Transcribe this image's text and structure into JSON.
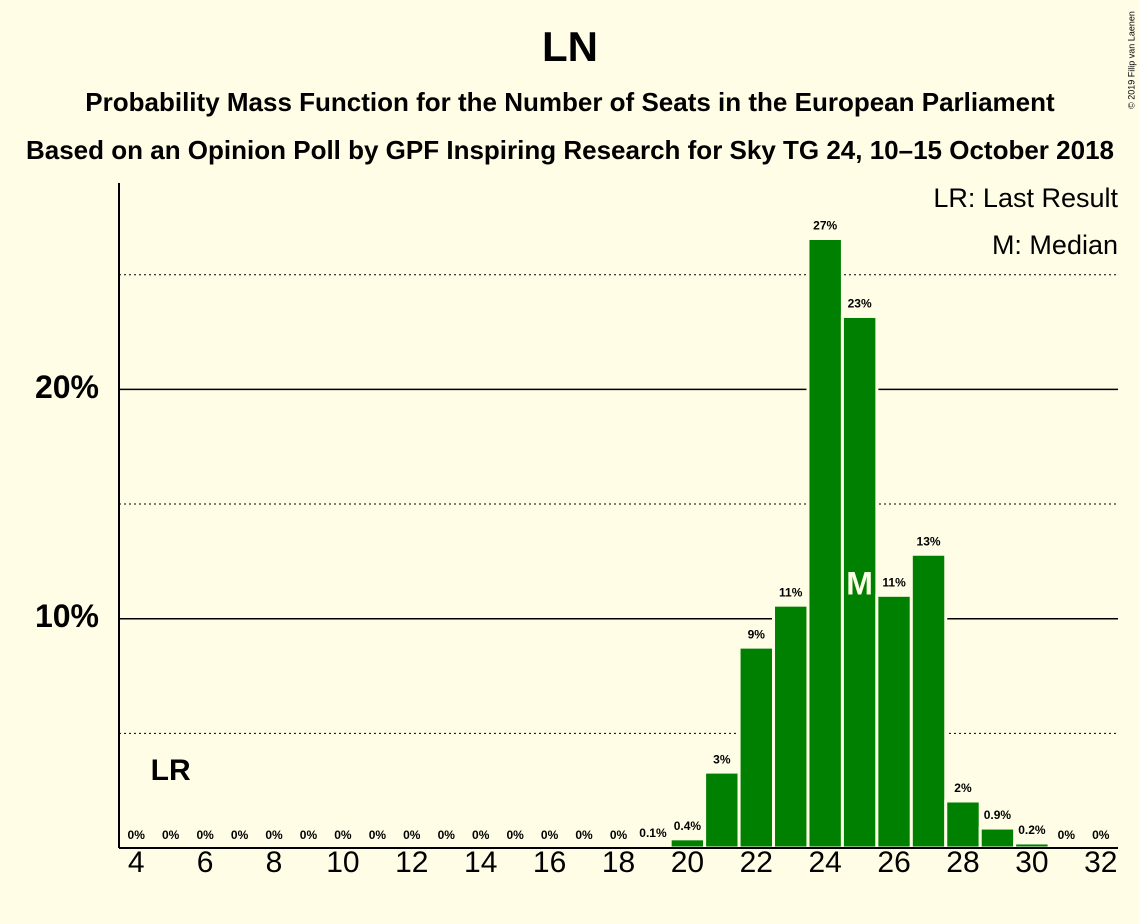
{
  "chart_data": {
    "type": "bar",
    "title": "LN",
    "subtitle": "Probability Mass Function for the Number of Seats in the European Parliament",
    "subtitle2": "Based on an Opinion Poll by GPF Inspiring Research for Sky TG 24, 10–15 October 2018",
    "copyright": "© 2019 Filip van Laenen",
    "x": [
      4,
      5,
      6,
      7,
      8,
      9,
      10,
      11,
      12,
      13,
      14,
      15,
      16,
      17,
      18,
      19,
      20,
      21,
      22,
      23,
      24,
      25,
      26,
      27,
      28,
      29,
      30,
      31,
      32
    ],
    "values": [
      0,
      0,
      0,
      0,
      0,
      0,
      0,
      0,
      0,
      0,
      0,
      0,
      0,
      0,
      0,
      0.1,
      0.4,
      3.31,
      8.76,
      10.59,
      26.58,
      23.18,
      11.02,
      12.81,
      2.05,
      0.87,
      0.22,
      0,
      0
    ],
    "value_labels": [
      "0%",
      "0%",
      "0%",
      "0%",
      "0%",
      "0%",
      "0%",
      "0%",
      "0%",
      "0%",
      "0%",
      "0%",
      "0%",
      "0%",
      "0%",
      "0.1%",
      "0.4%",
      "3%",
      "9%",
      "11%",
      "27%",
      "23%",
      "11%",
      "13%",
      "2%",
      "0.9%",
      "0.2%",
      "0%",
      "0%"
    ],
    "color": "#008000",
    "xlim": [
      3.5,
      32.5
    ],
    "xticks": [
      4,
      6,
      8,
      10,
      12,
      14,
      16,
      18,
      20,
      22,
      24,
      26,
      28,
      30,
      32
    ],
    "ylim": [
      0,
      29
    ],
    "yticks": [
      {
        "value": 10,
        "label": "10%"
      },
      {
        "value": 20,
        "label": "20%"
      }
    ],
    "minor_gridlines": [
      5,
      15,
      25
    ],
    "grid": true,
    "last_result": {
      "x": 5,
      "label": "LR"
    },
    "median": {
      "x": 25,
      "label": "M"
    },
    "legend": [
      "LR: Last Result",
      "M: Median"
    ]
  }
}
